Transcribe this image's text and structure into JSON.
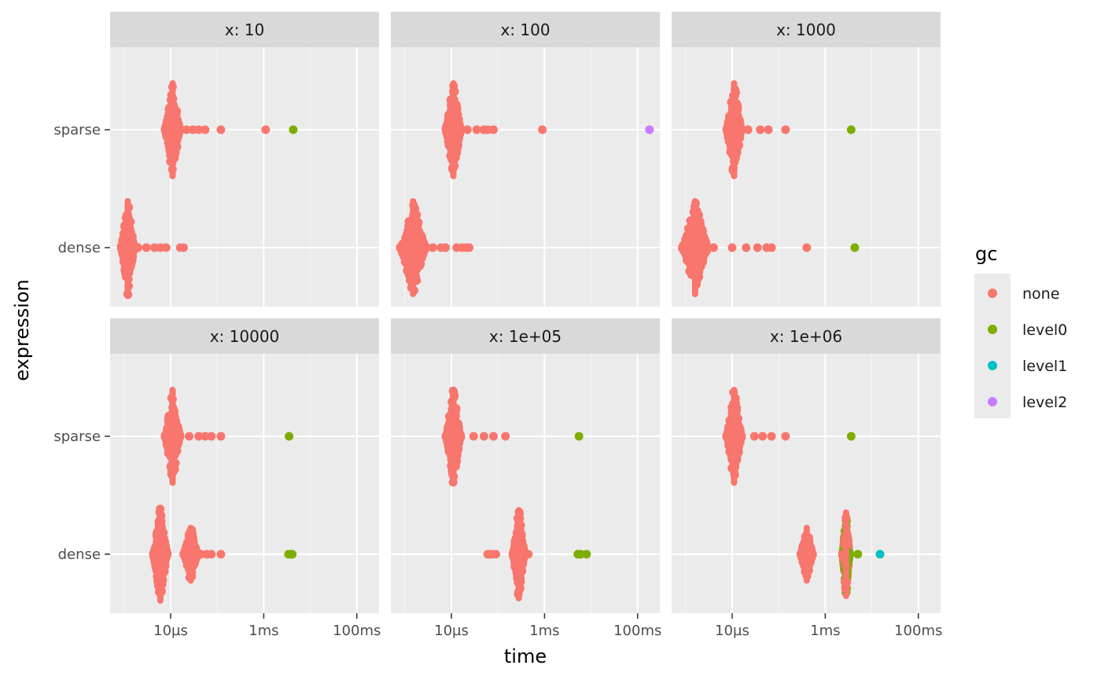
{
  "chart_data": {
    "type": "scatter",
    "xlabel": "time",
    "ylabel": "expression",
    "x_scale": "log10",
    "x_tick_labels": [
      "10µs",
      "1ms",
      "100ms"
    ],
    "y_categories": [
      "sparse",
      "dense"
    ],
    "legend": {
      "title": "gc",
      "position": "right",
      "entries": [
        {
          "label": "none",
          "color": "#F8766D"
        },
        {
          "label": "level0",
          "color": "#7CAE00"
        },
        {
          "label": "level1",
          "color": "#00BFC4"
        },
        {
          "label": "level2",
          "color": "#C77CFF"
        }
      ]
    },
    "panels": [
      {
        "label": "x: 10",
        "series": {
          "sparse": {
            "cluster": {
              "center": "11µs",
              "spread": 0.32,
              "max_height": 0.42
            },
            "tail": [
              {
                "t": "15µs",
                "gc": "none"
              },
              {
                "t": "22µs",
                "gc": "none"
              },
              {
                "t": "30µs",
                "gc": "none"
              },
              {
                "t": "40µs",
                "gc": "none"
              },
              {
                "t": "55µs",
                "gc": "none"
              },
              {
                "t": "120µs",
                "gc": "none"
              },
              {
                "t": "1.1ms",
                "gc": "none"
              },
              {
                "t": "4.3ms",
                "gc": "level0"
              }
            ]
          },
          "dense": {
            "cluster": {
              "center": "1.2µs",
              "spread": 0.28,
              "max_height": 0.42
            },
            "tail": [
              {
                "t": "2µs",
                "gc": "none"
              },
              {
                "t": "3µs",
                "gc": "none"
              },
              {
                "t": "4.5µs",
                "gc": "none"
              },
              {
                "t": "6µs",
                "gc": "none"
              },
              {
                "t": "8µs",
                "gc": "none"
              },
              {
                "t": "16µs",
                "gc": "none"
              },
              {
                "t": "19µs",
                "gc": "none"
              }
            ]
          }
        }
      },
      {
        "label": "x: 100",
        "series": {
          "sparse": {
            "cluster": {
              "center": "11µs",
              "spread": 0.32,
              "max_height": 0.42
            },
            "tail": [
              {
                "t": "15µs",
                "gc": "none"
              },
              {
                "t": "22µs",
                "gc": "none"
              },
              {
                "t": "35µs",
                "gc": "none"
              },
              {
                "t": "50µs",
                "gc": "none"
              },
              {
                "t": "60µs",
                "gc": "none"
              },
              {
                "t": "80µs",
                "gc": "none"
              },
              {
                "t": "900µs",
                "gc": "none"
              },
              {
                "t": "180ms",
                "gc": "level2"
              }
            ]
          },
          "dense": {
            "cluster": {
              "center": "1.5µs",
              "spread": 0.55,
              "max_height": 0.42
            },
            "tail": [
              {
                "t": "4µs",
                "gc": "none"
              },
              {
                "t": "6µs",
                "gc": "none"
              },
              {
                "t": "7.5µs",
                "gc": "none"
              },
              {
                "t": "13µs",
                "gc": "none"
              },
              {
                "t": "17µs",
                "gc": "none"
              },
              {
                "t": "21µs",
                "gc": "none"
              },
              {
                "t": "24µs",
                "gc": "none"
              }
            ]
          }
        }
      },
      {
        "label": "x: 1000",
        "series": {
          "sparse": {
            "cluster": {
              "center": "11µs",
              "spread": 0.32,
              "max_height": 0.42
            },
            "tail": [
              {
                "t": "15µs",
                "gc": "none"
              },
              {
                "t": "22µs",
                "gc": "none"
              },
              {
                "t": "40µs",
                "gc": "none"
              },
              {
                "t": "60µs",
                "gc": "none"
              },
              {
                "t": "140µs",
                "gc": "none"
              },
              {
                "t": "3.6ms",
                "gc": "level0"
              }
            ]
          },
          "dense": {
            "cluster": {
              "center": "1.6µs",
              "spread": 0.55,
              "max_height": 0.42
            },
            "tail": [
              {
                "t": "4µs",
                "gc": "none"
              },
              {
                "t": "10µs",
                "gc": "none"
              },
              {
                "t": "20µs",
                "gc": "none"
              },
              {
                "t": "35µs",
                "gc": "none"
              },
              {
                "t": "55µs",
                "gc": "none"
              },
              {
                "t": "70µs",
                "gc": "none"
              },
              {
                "t": "400µs",
                "gc": "none"
              },
              {
                "t": "4.3ms",
                "gc": "level0"
              }
            ]
          }
        }
      },
      {
        "label": "x: 10000",
        "series": {
          "sparse": {
            "cluster": {
              "center": "11µs",
              "spread": 0.32,
              "max_height": 0.42
            },
            "tail": [
              {
                "t": "15µs",
                "gc": "none"
              },
              {
                "t": "25µs",
                "gc": "none"
              },
              {
                "t": "40µs",
                "gc": "none"
              },
              {
                "t": "55µs",
                "gc": "none"
              },
              {
                "t": "75µs",
                "gc": "none"
              },
              {
                "t": "120µs",
                "gc": "none"
              },
              {
                "t": "3.5ms",
                "gc": "level0"
              }
            ]
          },
          "dense": {
            "cluster": {
              "center": "6µs",
              "spread": 0.3,
              "max_height": 0.42
            },
            "cluster2": {
              "center": "27µs",
              "spread": 0.3,
              "max_height": 0.25
            },
            "tail": [
              {
                "t": "45µs",
                "gc": "none"
              },
              {
                "t": "60µs",
                "gc": "none"
              },
              {
                "t": "75µs",
                "gc": "none"
              },
              {
                "t": "120µs",
                "gc": "none"
              },
              {
                "t": "3.4ms",
                "gc": "level0"
              },
              {
                "t": "3.8ms",
                "gc": "level0"
              },
              {
                "t": "4.1ms",
                "gc": "level0"
              }
            ]
          }
        }
      },
      {
        "label": "x: 1e+05",
        "series": {
          "sparse": {
            "cluster": {
              "center": "11µs",
              "spread": 0.32,
              "max_height": 0.42
            },
            "tail": [
              {
                "t": "15µs",
                "gc": "none"
              },
              {
                "t": "30µs",
                "gc": "none"
              },
              {
                "t": "50µs",
                "gc": "none"
              },
              {
                "t": "80µs",
                "gc": "none"
              },
              {
                "t": "145µs",
                "gc": "none"
              },
              {
                "t": "5.5ms",
                "gc": "level0"
              }
            ]
          },
          "dense": {
            "cluster": {
              "center": "280µs",
              "spread": 0.25,
              "max_height": 0.4
            },
            "tail": [
              {
                "t": "60µs",
                "gc": "none"
              },
              {
                "t": "65µs",
                "gc": "none"
              },
              {
                "t": "70µs",
                "gc": "none"
              },
              {
                "t": "75µs",
                "gc": "none"
              },
              {
                "t": "90µs",
                "gc": "none"
              },
              {
                "t": "450µs",
                "gc": "none"
              },
              {
                "t": "5.2ms",
                "gc": "level0"
              },
              {
                "t": "6.0ms",
                "gc": "level0"
              },
              {
                "t": "8.0ms",
                "gc": "level0"
              }
            ]
          }
        }
      },
      {
        "label": "x: 1e+06",
        "series": {
          "sparse": {
            "cluster": {
              "center": "11µs",
              "spread": 0.32,
              "max_height": 0.42
            },
            "tail": [
              {
                "t": "15µs",
                "gc": "none"
              },
              {
                "t": "30µs",
                "gc": "none"
              },
              {
                "t": "45µs",
                "gc": "none"
              },
              {
                "t": "70µs",
                "gc": "none"
              },
              {
                "t": "140µs",
                "gc": "none"
              },
              {
                "t": "3.6ms",
                "gc": "level0"
              }
            ]
          },
          "dense": {
            "cluster": {
              "center": "400µs",
              "spread": 0.25,
              "max_height": 0.25
            },
            "gc_mixed_cluster": {
              "center": "2.8ms",
              "spread": 0.15,
              "max_height": 0.38
            },
            "tail": [
              {
                "t": "5ms",
                "gc": "level0"
              },
              {
                "t": "15ms",
                "gc": "level1"
              }
            ]
          }
        }
      }
    ]
  }
}
